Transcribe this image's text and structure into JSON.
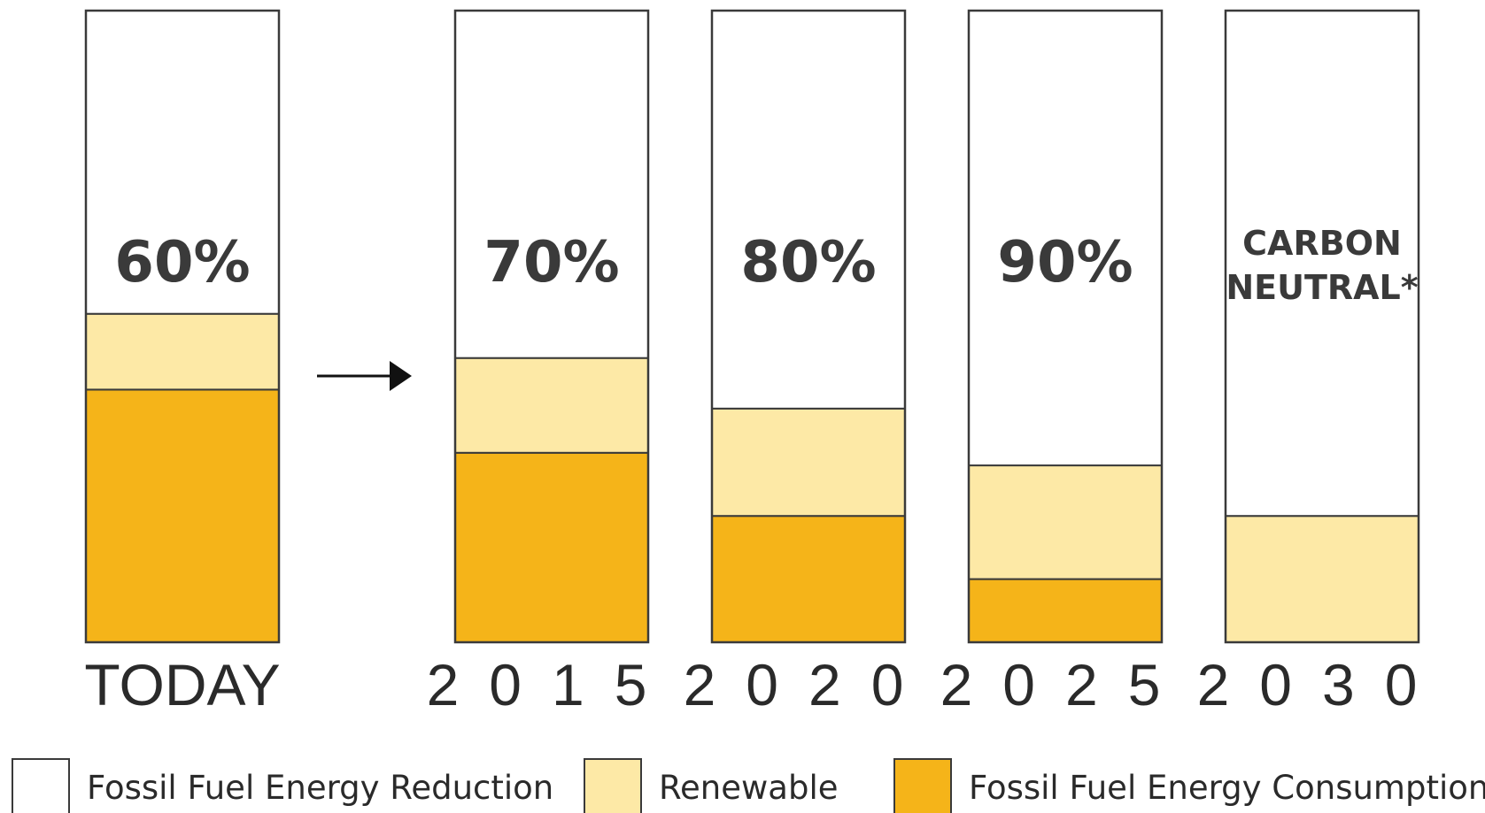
{
  "chart_data": {
    "type": "bar",
    "stacked": true,
    "categories": [
      "TODAY",
      "2015",
      "2020",
      "2025",
      "2030"
    ],
    "bar_labels": [
      [
        "60%"
      ],
      [
        "70%"
      ],
      [
        "80%"
      ],
      [
        "90%"
      ],
      [
        "CARBON",
        "NEUTRAL*"
      ]
    ],
    "series": [
      {
        "name": "Fossil Fuel Energy Consumption",
        "color": "#f5b419",
        "values": [
          40,
          30,
          20,
          10,
          0
        ]
      },
      {
        "name": "Renewable",
        "color": "#fde9a6",
        "values": [
          12,
          15,
          17,
          18,
          20
        ]
      },
      {
        "name": "Fossil Fuel Energy Reduction",
        "color": "#ffffff",
        "values": [
          48,
          55,
          63,
          72,
          80
        ]
      }
    ],
    "legend_order": [
      2,
      1,
      0
    ],
    "legend_placement": "bottom",
    "ylim": [
      0,
      100
    ],
    "grid": false,
    "arrow_after_category": 0
  }
}
